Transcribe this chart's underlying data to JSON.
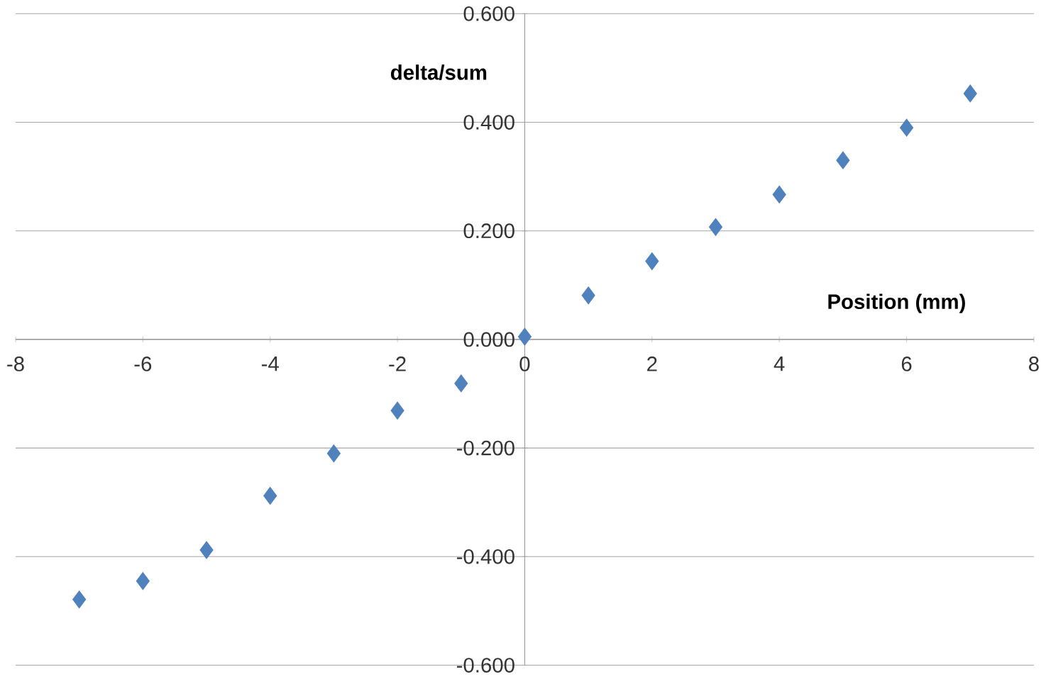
{
  "chart_data": {
    "type": "scatter",
    "xlabel": "Position (mm)",
    "ylabel": "delta/sum",
    "x": [
      -7,
      -6,
      -5,
      -4,
      -3,
      -2,
      -1,
      0,
      1,
      2,
      3,
      4,
      5,
      6,
      7
    ],
    "values": [
      -0.479,
      -0.445,
      -0.388,
      -0.288,
      -0.21,
      -0.131,
      -0.081,
      0.005,
      0.081,
      0.144,
      0.207,
      0.267,
      0.33,
      0.39,
      0.453
    ],
    "color": "#4f81bd",
    "marker": "diamond",
    "grid": "y",
    "xlim": [
      -8,
      8
    ],
    "xticks": [
      -8,
      -6,
      -4,
      -2,
      0,
      2,
      4,
      6,
      8
    ],
    "ylim": [
      -0.6,
      0.6
    ],
    "yticks": [
      {
        "value": -0.6,
        "label": "-0.600"
      },
      {
        "value": -0.4,
        "label": "-0.400"
      },
      {
        "value": -0.2,
        "label": "-0.200"
      },
      {
        "value": 0,
        "label": "0.000"
      },
      {
        "value": 0.2,
        "label": "0.200"
      },
      {
        "value": 0.4,
        "label": "0.400"
      },
      {
        "value": 0.6,
        "label": "0.600"
      }
    ]
  }
}
